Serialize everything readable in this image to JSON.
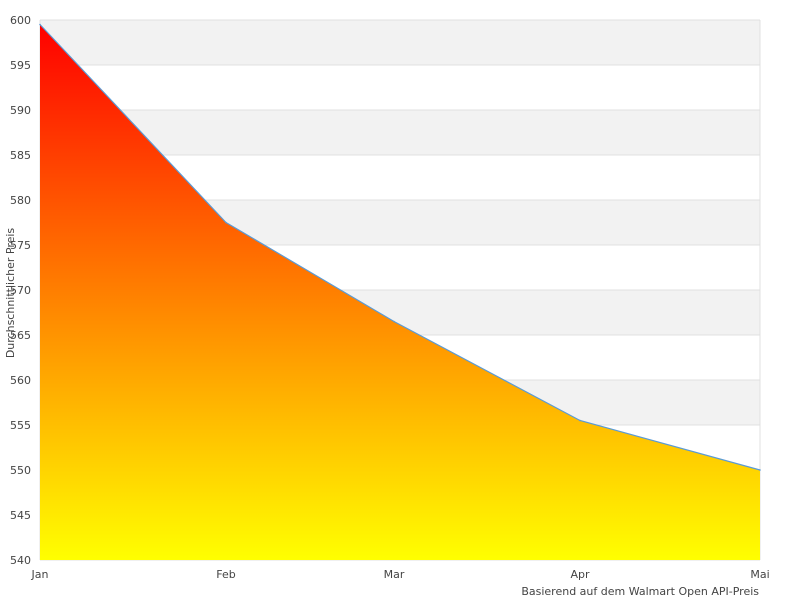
{
  "chart_data": {
    "type": "area",
    "title": "",
    "xlabel": "Basierend auf dem Walmart Open API-Preis",
    "ylabel": "Durchschnittlicher Preis",
    "categories": [
      "Jan",
      "Feb",
      "Mar",
      "Apr",
      "Mai"
    ],
    "x": [
      "2017-01-01",
      "2017-02-01",
      "2017-03-01",
      "2017-04-01",
      "2017-05-01"
    ],
    "values": [
      599.5,
      577.5,
      566.5,
      555.5,
      550.0
    ],
    "ylim": [
      540,
      600
    ],
    "yticks": [
      540,
      545,
      550,
      555,
      560,
      565,
      570,
      575,
      580,
      585,
      590,
      595,
      600
    ],
    "grid": true,
    "legend": "none",
    "colors": {
      "fill_top": "#ff0000",
      "fill_bottom": "#ffff00",
      "line": "#5b9bd5",
      "band": "#f2f2f2",
      "grid": "#e0e0e0"
    }
  }
}
